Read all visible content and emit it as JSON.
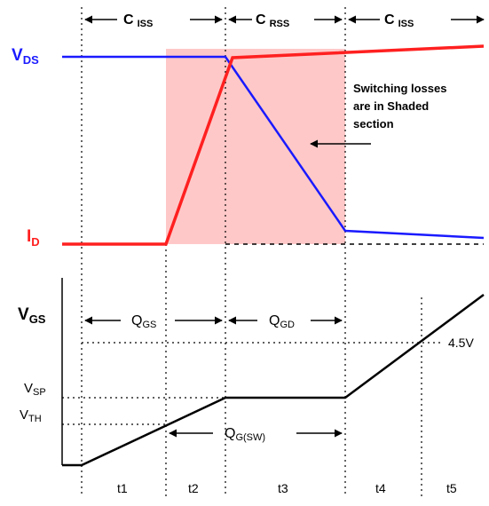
{
  "colors": {
    "vds": "#1a1aff",
    "id": "#ff2020",
    "vgs": "#000000",
    "shade": "#ffc8c8"
  },
  "top": {
    "regions": [
      {
        "main": "C",
        "sub": "ISS"
      },
      {
        "main": "C",
        "sub": "RSS"
      },
      {
        "main": "C",
        "sub": "ISS"
      }
    ],
    "vds_label": {
      "main": "V",
      "sub": "DS"
    },
    "id_label": {
      "main": "I",
      "sub": "D"
    },
    "note_lines": [
      "Switching losses",
      "are in Shaded",
      "section"
    ]
  },
  "bottom": {
    "vgs_label": {
      "main": "V",
      "sub": "GS"
    },
    "qgs": {
      "main": "Q",
      "sub": "GS"
    },
    "qgd": {
      "main": "Q",
      "sub": "GD"
    },
    "qgsw": {
      "main": "Q",
      "sub": "G(SW)"
    },
    "vsp": {
      "main": "V",
      "sub": "SP"
    },
    "vth": {
      "main": "V",
      "sub": "TH"
    },
    "level": "4.5V",
    "intervals": [
      "t1",
      "t2",
      "t3",
      "t4",
      "t5"
    ]
  }
}
